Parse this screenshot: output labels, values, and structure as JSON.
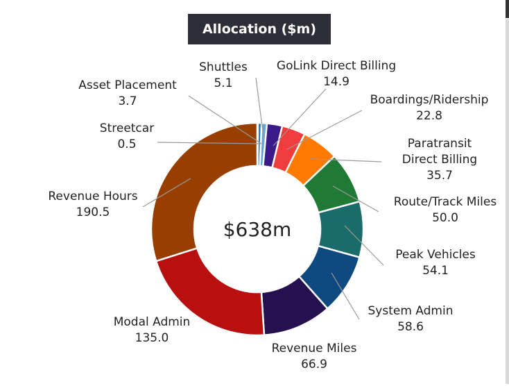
{
  "chart_data": {
    "type": "pie",
    "variant": "donut",
    "title": "Allocation ($m)",
    "center_label": "$638m",
    "slices": [
      {
        "label": "Streetcar",
        "value": 0.5,
        "value_text": "0.5",
        "color": "#2e75b6"
      },
      {
        "label": "Asset Placement",
        "value": 3.7,
        "value_text": "3.7",
        "color": "#2e75b6"
      },
      {
        "label": "Shuttles",
        "value": 5.1,
        "value_text": "5.1",
        "color": "#5fa8d3"
      },
      {
        "label": "GoLink Direct Billing",
        "value": 14.9,
        "value_text": "14.9",
        "color": "#3b1a8a"
      },
      {
        "label": "Boardings/Ridership",
        "value": 22.8,
        "value_text": "22.8",
        "color": "#f03c3c"
      },
      {
        "label": "Paratransit Direct Billing",
        "value": 35.7,
        "value_text": "35.7",
        "color": "#ff7a00"
      },
      {
        "label": "Route/Track Miles",
        "value": 50.0,
        "value_text": "50.0",
        "color": "#207a35"
      },
      {
        "label": "Peak Vehicles",
        "value": 54.1,
        "value_text": "54.1",
        "color": "#1b6b6b"
      },
      {
        "label": "System Admin",
        "value": 58.6,
        "value_text": "58.6",
        "color": "#0e4a80"
      },
      {
        "label": "Revenue Miles",
        "value": 66.9,
        "value_text": "66.9",
        "color": "#251050"
      },
      {
        "label": "Modal Admin",
        "value": 135.0,
        "value_text": "135.0",
        "color": "#b80f0f"
      },
      {
        "label": "Revenue Hours",
        "value": 190.5,
        "value_text": "190.5",
        "color": "#983f00"
      }
    ]
  }
}
